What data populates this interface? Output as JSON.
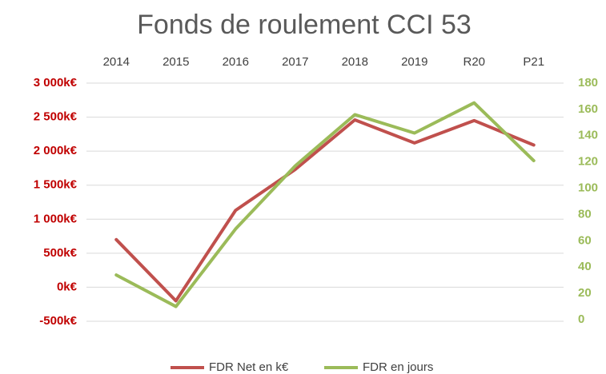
{
  "chart_data": {
    "type": "line",
    "title": "Fonds de roulement CCI 53",
    "categories": [
      "2014",
      "2015",
      "2016",
      "2017",
      "2018",
      "2019",
      "R20",
      "P21"
    ],
    "series": [
      {
        "name": "FDR Net en k€",
        "color": "#c0504d",
        "values": [
          700,
          -200,
          1130,
          1730,
          2460,
          2120,
          2450,
          2090
        ]
      },
      {
        "name": "FDR en jours",
        "color": "#9bbb59",
        "axis": "y2",
        "values": [
          34,
          10,
          69,
          117,
          156,
          142,
          165,
          121
        ]
      }
    ],
    "ylim": [
      -500,
      3000
    ],
    "yticks": [
      {
        "value": -500,
        "label": "-500k€"
      },
      {
        "value": 0,
        "label": "0k€"
      },
      {
        "value": 500,
        "label": "500k€"
      },
      {
        "value": 1000,
        "label": "1 000k€"
      },
      {
        "value": 1500,
        "label": "1 500k€"
      },
      {
        "value": 2000,
        "label": "2 000k€"
      },
      {
        "value": 2500,
        "label": "2 500k€"
      },
      {
        "value": 3000,
        "label": "3 000k€"
      }
    ],
    "y2lim": [
      0,
      180
    ],
    "y2ticks": [
      0,
      20,
      40,
      60,
      80,
      100,
      120,
      140,
      160,
      180
    ],
    "grid": true,
    "legend": "bottom"
  }
}
